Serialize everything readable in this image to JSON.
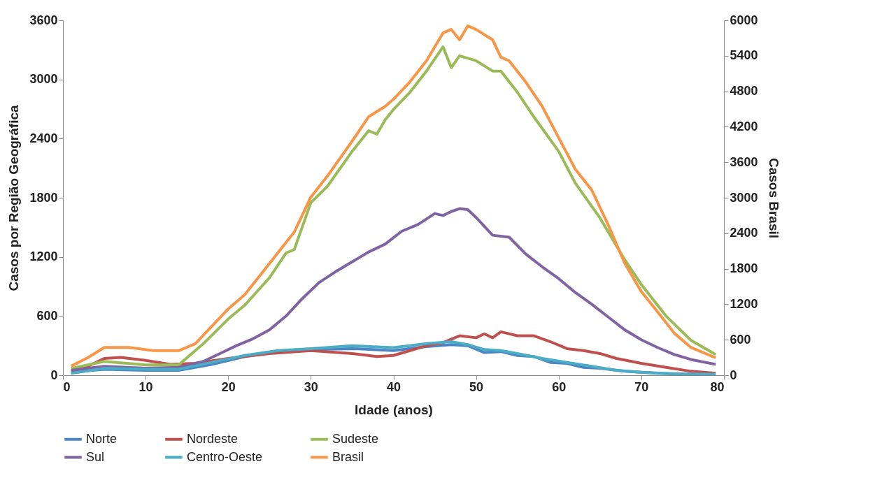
{
  "chart_data": {
    "type": "line",
    "xlabel": "Idade (anos)",
    "ylabel": "Casos por Região Geográfica",
    "y2label": "Casos Brasil",
    "xlim": [
      0,
      80
    ],
    "xticks": [
      0,
      10,
      20,
      30,
      40,
      50,
      60,
      70,
      80
    ],
    "ylim": [
      0,
      3600
    ],
    "yticks": [
      0,
      600,
      1200,
      1800,
      2400,
      3000,
      3600
    ],
    "y2lim": [
      0,
      6000
    ],
    "y2ticks": [
      0,
      600,
      1200,
      1800,
      2400,
      3000,
      3600,
      4200,
      4800,
      5400,
      6000
    ],
    "legend": "bottom",
    "series": [
      {
        "name": "Norte",
        "color": "#4a86c5",
        "x": [
          1,
          5,
          10,
          14,
          18,
          22,
          26,
          30,
          35,
          40,
          44,
          47,
          49,
          51,
          53,
          55,
          57,
          59,
          61,
          63,
          65,
          68,
          72,
          76,
          79
        ],
        "values": [
          30,
          60,
          50,
          50,
          110,
          190,
          240,
          260,
          270,
          250,
          290,
          310,
          300,
          230,
          240,
          200,
          190,
          130,
          120,
          80,
          70,
          40,
          20,
          10,
          10
        ]
      },
      {
        "name": "Nordeste",
        "color": "#c0504d",
        "x": [
          1,
          3,
          5,
          7,
          10,
          13,
          16,
          20,
          25,
          30,
          35,
          38,
          40,
          42,
          44,
          46,
          48,
          50,
          51,
          52,
          53,
          55,
          57,
          59,
          61,
          63,
          65,
          67,
          70,
          73,
          76,
          79
        ],
        "values": [
          40,
          90,
          170,
          180,
          150,
          110,
          120,
          170,
          220,
          250,
          220,
          190,
          200,
          250,
          300,
          330,
          400,
          380,
          420,
          380,
          440,
          400,
          400,
          340,
          270,
          250,
          220,
          170,
          120,
          80,
          40,
          20
        ]
      },
      {
        "name": "Sudeste",
        "color": "#9bbb59",
        "x": [
          1,
          5,
          10,
          14,
          17,
          20,
          22,
          25,
          27,
          28,
          30,
          32,
          35,
          37,
          38,
          39,
          40,
          42,
          44,
          46,
          47,
          48,
          50,
          52,
          53,
          55,
          57,
          60,
          62,
          65,
          68,
          70,
          73,
          76,
          79
        ],
        "values": [
          70,
          140,
          105,
          105,
          320,
          570,
          710,
          990,
          1240,
          1275,
          1750,
          1915,
          2270,
          2480,
          2445,
          2590,
          2695,
          2870,
          3085,
          3330,
          3120,
          3240,
          3190,
          3085,
          3085,
          2870,
          2620,
          2270,
          1950,
          1595,
          1170,
          920,
          600,
          355,
          210
        ]
      },
      {
        "name": "Sul",
        "color": "#8064a2",
        "x": [
          1,
          5,
          10,
          14,
          17,
          19,
          21,
          23,
          25,
          27,
          29,
          31,
          33,
          35,
          37,
          39,
          41,
          43,
          45,
          46,
          47,
          48,
          49,
          50,
          52,
          54,
          56,
          58,
          60,
          62,
          64,
          66,
          68,
          70,
          72,
          74,
          76,
          79
        ],
        "values": [
          50,
          90,
          70,
          80,
          140,
          220,
          300,
          370,
          460,
          600,
          780,
          940,
          1050,
          1150,
          1250,
          1330,
          1460,
          1530,
          1640,
          1620,
          1660,
          1690,
          1680,
          1600,
          1420,
          1400,
          1230,
          1100,
          980,
          840,
          720,
          590,
          460,
          360,
          280,
          210,
          160,
          110
        ]
      },
      {
        "name": "Centro-Oeste",
        "color": "#4bacc6",
        "x": [
          1,
          5,
          10,
          14,
          18,
          22,
          26,
          30,
          35,
          40,
          44,
          47,
          49,
          51,
          53,
          55,
          58,
          61,
          64,
          67,
          70,
          74,
          79
        ],
        "values": [
          20,
          70,
          60,
          60,
          130,
          200,
          250,
          270,
          300,
          280,
          320,
          340,
          310,
          260,
          250,
          220,
          170,
          130,
          90,
          50,
          30,
          15,
          10
        ]
      },
      {
        "name": "Brasil",
        "color": "#f79646",
        "axis": "y2",
        "x": [
          1,
          3,
          5,
          8,
          11,
          14,
          16,
          18,
          20,
          22,
          25,
          27,
          28,
          30,
          32,
          35,
          37,
          39,
          40,
          42,
          44,
          46,
          47,
          48,
          49,
          50,
          52,
          53,
          54,
          56,
          58,
          60,
          62,
          64,
          66,
          68,
          70,
          72,
          74,
          76,
          79
        ],
        "values": [
          155,
          295,
          470,
          470,
          415,
          415,
          530,
          825,
          1120,
          1360,
          1890,
          2245,
          2420,
          3010,
          3365,
          3955,
          4370,
          4545,
          4665,
          4960,
          5315,
          5785,
          5845,
          5670,
          5905,
          5845,
          5670,
          5375,
          5315,
          4960,
          4545,
          4015,
          3485,
          3130,
          2540,
          1890,
          1415,
          1065,
          710,
          470,
          295
        ]
      }
    ]
  }
}
